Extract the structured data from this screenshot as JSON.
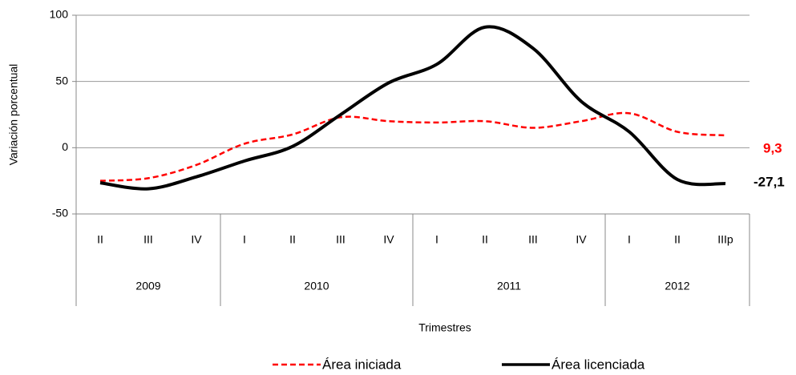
{
  "chart_data": {
    "type": "line",
    "y_label": "Variación porcentual",
    "x_label": "Trimestres",
    "categories": [
      "II",
      "III",
      "IV",
      "I",
      "II",
      "III",
      "IV",
      "I",
      "II",
      "III",
      "IV",
      "I",
      "II",
      "IIIp"
    ],
    "years": [
      "2009",
      "2009",
      "2009",
      "2010",
      "2010",
      "2010",
      "2010",
      "2011",
      "2011",
      "2011",
      "2011",
      "2012",
      "2012",
      "2012"
    ],
    "series": [
      {
        "name": "Área iniciada",
        "color": "#ff0000",
        "dashed": true,
        "values": [
          -25,
          -23,
          -13,
          3,
          10,
          23,
          20,
          19,
          20,
          15,
          20,
          26,
          12,
          9.3
        ],
        "end_label": "9,3"
      },
      {
        "name": "Área licenciada",
        "color": "#000000",
        "dashed": false,
        "values": [
          -26.5,
          -31,
          -22,
          -10,
          1,
          25,
          49,
          63,
          91,
          75,
          35,
          12,
          -24,
          -27.1
        ],
        "end_label": "-27,1"
      }
    ],
    "ylim": [
      -50,
      100
    ],
    "yticks": [
      -50,
      0,
      50,
      100
    ],
    "grid": true,
    "legend": "bottom"
  }
}
